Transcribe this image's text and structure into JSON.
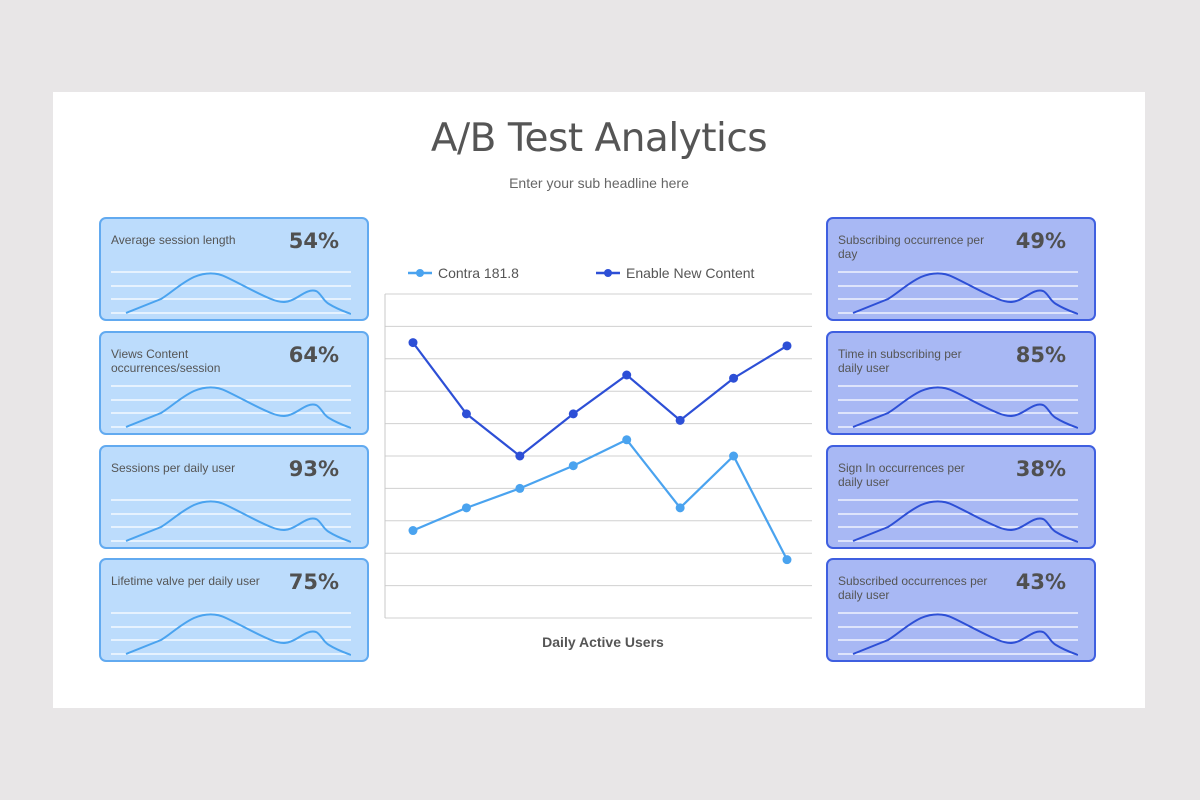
{
  "slide": {
    "title": "A/B Test Analytics",
    "subtitle": "Enter your sub headline here"
  },
  "colors": {
    "contra": "#4aa3ef",
    "enable": "#2d4fd6",
    "left_card_bg": "#bcdcfc",
    "left_card_border": "#62aaf0",
    "right_card_bg": "#a8b8f4",
    "right_card_border": "#3f5fe0"
  },
  "left_cards": [
    {
      "label": "Average session length",
      "value": "54%"
    },
    {
      "label": "Views Content occurrences/session",
      "value": "64%"
    },
    {
      "label": "Sessions per daily user",
      "value": "93%"
    },
    {
      "label": "Lifetime valve per daily user",
      "value": "75%"
    }
  ],
  "right_cards": [
    {
      "label": "Subscribing occurrence per day",
      "value": "49%"
    },
    {
      "label": "Time in subscribing per daily user",
      "value": "85%"
    },
    {
      "label": "Sign In occurrences per daily user",
      "value": "38%"
    },
    {
      "label": "Subscribed occurrences per daily user",
      "value": "43%"
    }
  ],
  "chart_data": {
    "type": "line",
    "title": "",
    "xlabel": "Daily Active Users",
    "ylabel": "",
    "x": [
      1,
      2,
      3,
      4,
      5,
      6,
      7,
      8
    ],
    "ylim": [
      0,
      10
    ],
    "grid": true,
    "legend_position": "top",
    "series": [
      {
        "name": "Contra 181.8",
        "values": [
          2.7,
          3.4,
          4.0,
          4.7,
          5.5,
          3.4,
          5.0,
          1.8
        ]
      },
      {
        "name": "Enable New Content",
        "values": [
          8.5,
          6.3,
          5.0,
          6.3,
          7.5,
          6.1,
          7.4,
          8.4
        ]
      }
    ]
  },
  "legend": [
    {
      "label": "Contra 181.8"
    },
    {
      "label": "Enable New Content"
    }
  ]
}
